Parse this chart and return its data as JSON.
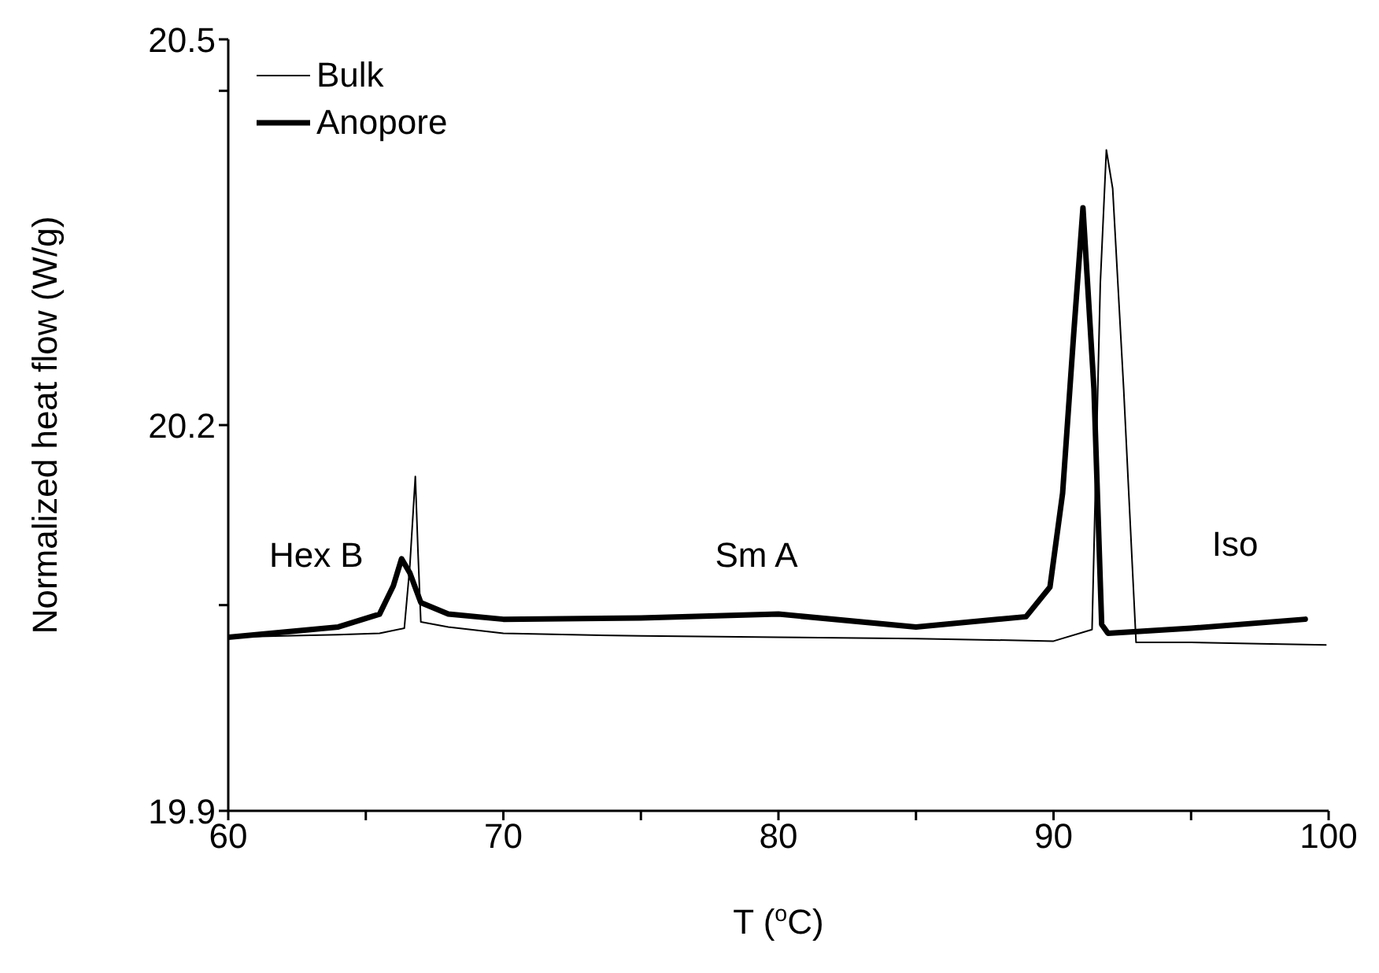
{
  "chart_data": {
    "type": "line",
    "xlabel": "T ($^{o}$C)",
    "ylabel": "Normalized heat flow (W/g)",
    "xlim": [
      60,
      100
    ],
    "xticks": [
      60,
      {
        "value": 65,
        "label": null
      },
      70,
      {
        "value": 75,
        "label": null
      },
      80,
      {
        "value": 85,
        "label": null
      },
      90,
      {
        "value": 95,
        "label": null
      },
      100
    ],
    "ylim": [
      19.9,
      20.5
    ],
    "yticks": [
      19.9,
      {
        "value": 20.06,
        "label": null
      },
      20.2,
      {
        "value": 20.46,
        "label": null
      },
      20.5
    ],
    "legend": "top left",
    "marker": "none",
    "line_style": "solid",
    "series": [
      {
        "name": "Bulk",
        "color": "#000000",
        "x": [
          60,
          62,
          64,
          65.5,
          66.4,
          66.6,
          66.8,
          66.9,
          67,
          68,
          70,
          75,
          80,
          85,
          90,
          91.4,
          91.7,
          91.92,
          92.15,
          92.55,
          93,
          95,
          97.5,
          99.9
        ],
        "values": [
          20.035,
          20.036,
          20.037,
          20.038,
          20.042,
          20.09,
          20.16,
          20.1,
          20.047,
          20.043,
          20.038,
          20.036,
          20.035,
          20.034,
          20.032,
          20.041,
          20.31,
          20.414,
          20.384,
          20.228,
          20.031,
          20.031,
          20.03,
          20.029
        ]
      },
      {
        "name": "Anopore",
        "color": "#000000",
        "x": [
          60,
          62,
          64,
          65.5,
          66,
          66.3,
          66.6,
          67,
          68,
          70,
          75,
          80,
          85,
          89,
          89.87,
          90.33,
          90.73,
          91.07,
          91.47,
          91.75,
          91.98,
          95,
          99.15
        ],
        "values": [
          20.035,
          20.039,
          20.043,
          20.053,
          20.075,
          20.096,
          20.085,
          20.062,
          20.053,
          20.049,
          20.05,
          20.053,
          20.043,
          20.051,
          20.074,
          20.147,
          20.27,
          20.369,
          20.228,
          20.045,
          20.038,
          20.042,
          20.049
        ]
      }
    ],
    "annotations": [
      "Hex B",
      "Sm A",
      "Iso"
    ]
  }
}
